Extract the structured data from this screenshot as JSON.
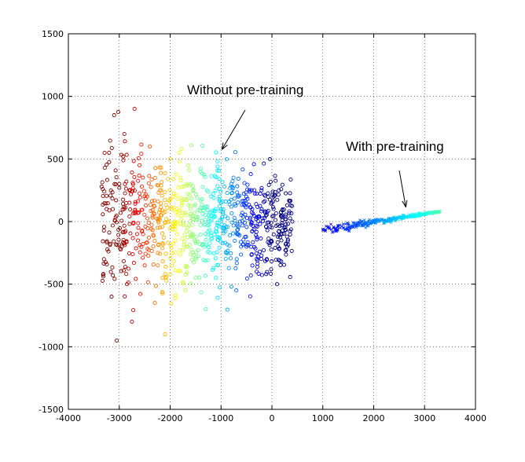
{
  "chart_data": {
    "type": "scatter",
    "title": "",
    "xlabel": "",
    "ylabel": "",
    "xlim": [
      -4000,
      4000
    ],
    "ylim": [
      -1500,
      1500
    ],
    "grid": true,
    "x_ticks": [
      "-4000",
      "-3000",
      "-2000",
      "-1000",
      "0",
      "1000",
      "2000",
      "3000",
      "4000"
    ],
    "y_ticks": [
      "1500",
      "1000",
      "500",
      "0",
      "-500",
      "-1000",
      "-1500"
    ],
    "colormap": "jet",
    "series": [
      {
        "name": "Without pre-training",
        "marker": "circle",
        "x_range": [
          -3400,
          500
        ],
        "y_range": [
          -1000,
          950
        ],
        "points": [
          [
            -3300,
            -300
          ],
          [
            -3250,
            100
          ],
          [
            -3200,
            550
          ],
          [
            -3150,
            -600
          ],
          [
            -3100,
            850
          ],
          [
            -3050,
            -950
          ],
          [
            -3000,
            300
          ],
          [
            -2950,
            -200
          ],
          [
            -2900,
            700
          ],
          [
            -2850,
            -500
          ],
          [
            -2800,
            150
          ],
          [
            -2750,
            -800
          ],
          [
            -2700,
            900
          ],
          [
            -2650,
            -100
          ],
          [
            -2600,
            450
          ],
          [
            -2500,
            -350
          ],
          [
            -2400,
            600
          ],
          [
            -2300,
            -650
          ],
          [
            -2200,
            250
          ],
          [
            -2100,
            -900
          ],
          [
            -2000,
            500
          ],
          [
            -1900,
            -150
          ],
          [
            -1800,
            350
          ],
          [
            -1700,
            -550
          ],
          [
            -1600,
            100
          ],
          [
            -1500,
            -300
          ],
          [
            -1400,
            400
          ],
          [
            -1300,
            -700
          ],
          [
            -1200,
            200
          ],
          [
            -1100,
            -450
          ],
          [
            -1000,
            150
          ],
          [
            -900,
            -250
          ],
          [
            -800,
            300
          ],
          [
            -700,
            -550
          ],
          [
            -600,
            50
          ],
          [
            -500,
            -200
          ],
          [
            -400,
            250
          ],
          [
            -300,
            -400
          ],
          [
            -200,
            100
          ],
          [
            -100,
            -300
          ],
          [
            0,
            150
          ],
          [
            100,
            -500
          ],
          [
            200,
            50
          ],
          [
            300,
            -200
          ],
          [
            400,
            0
          ],
          [
            -2250,
            -50
          ],
          [
            -1850,
            50
          ],
          [
            -1550,
            -100
          ],
          [
            -1250,
            0
          ],
          [
            -950,
            -50
          ]
        ],
        "color_by": "x (red at -3000, blue at 0)"
      },
      {
        "name": "With pre-training",
        "marker": "x",
        "x_range": [
          1000,
          3300
        ],
        "y_range": [
          -120,
          100
        ],
        "points": [
          [
            1000,
            -60
          ],
          [
            1100,
            -40
          ],
          [
            1200,
            -80
          ],
          [
            1300,
            -30
          ],
          [
            1400,
            -50
          ],
          [
            1500,
            -20
          ],
          [
            1600,
            -40
          ],
          [
            1700,
            -10
          ],
          [
            1800,
            -25
          ],
          [
            1900,
            0
          ],
          [
            2000,
            -10
          ],
          [
            2100,
            15
          ],
          [
            2200,
            5
          ],
          [
            2300,
            25
          ],
          [
            2400,
            20
          ],
          [
            2500,
            40
          ],
          [
            2600,
            45
          ],
          [
            2700,
            55
          ],
          [
            2800,
            60
          ],
          [
            2900,
            70
          ],
          [
            3000,
            72
          ],
          [
            3100,
            76
          ],
          [
            3200,
            78
          ],
          [
            3300,
            80
          ]
        ],
        "color_by": "x (blue at 1000, cyan at 3300)"
      }
    ],
    "annotations": [
      {
        "text": "Without pre-training",
        "arrow_to": [
          -1200,
          550
        ]
      },
      {
        "text": "With pre-training",
        "arrow_to": [
          2600,
          90
        ]
      }
    ]
  }
}
